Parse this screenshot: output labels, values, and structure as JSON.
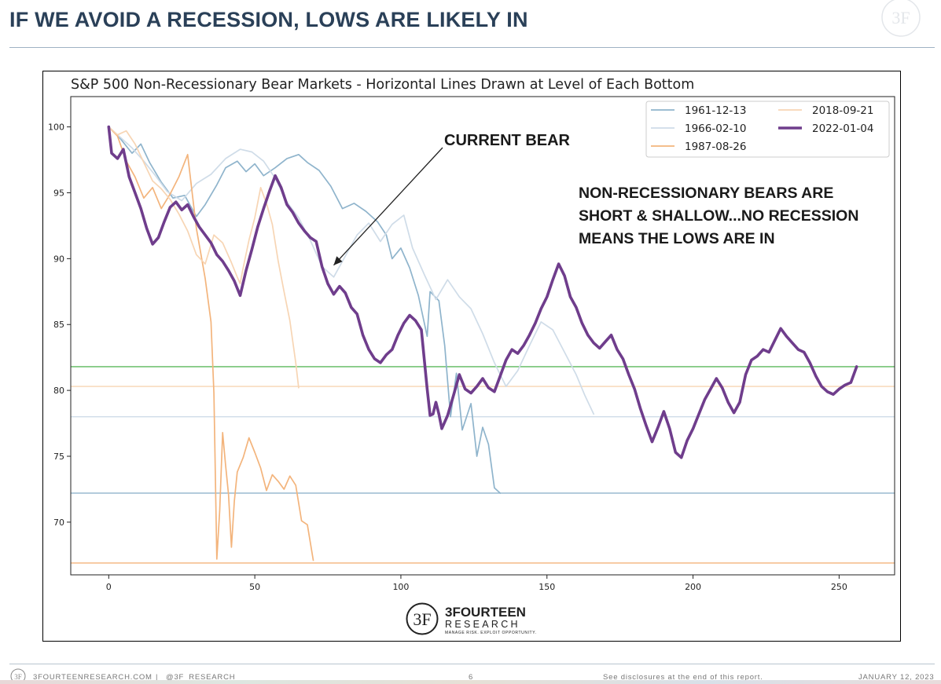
{
  "slide": {
    "title": "IF WE AVOID A RECESSION, LOWS ARE LIKELY IN",
    "brand_name": "3FOURTEEN",
    "brand_sub": "RESEARCH",
    "brand_tagline": "MANAGE RISK. EXPLOIT OPPORTUNITY.",
    "logo_mark": "3F"
  },
  "footer": {
    "site": "3FOURTEENRESEARCH.COM",
    "separator": "|",
    "handle": "@3F_RESEARCH",
    "page_number": "6",
    "disclosure": "See disclosures at the end of this report.",
    "date": "JANUARY 12, 2023"
  },
  "colors": {
    "title": "#2a4058",
    "s1961": "#8fb4cc",
    "s1966": "#cfdce8",
    "s1987": "#f3b47c",
    "s2018": "#f7d5b4",
    "s2022": "#6f3d8c",
    "green_line": "#5cb85c"
  },
  "chart_data": {
    "type": "line",
    "title": "S&P 500 Non-Recessionary Bear Markets - Horizontal Lines Drawn at Level of Each Bottom",
    "xlabel": "",
    "ylabel": "",
    "xlim": [
      -13,
      269
    ],
    "ylim": [
      66,
      102.3
    ],
    "xticks": [
      0,
      50,
      100,
      150,
      200,
      250
    ],
    "yticks": [
      70,
      75,
      80,
      85,
      90,
      95,
      100
    ],
    "grid": false,
    "legend_position": "top-right",
    "legend_columns": 2,
    "series": [
      {
        "name": "1961-12-13",
        "color": "#8fb4cc",
        "x": [
          0,
          4,
          8,
          11,
          14,
          18,
          22,
          26,
          30,
          33,
          37,
          40,
          44,
          47,
          50,
          53,
          57,
          61,
          65,
          68,
          72,
          76,
          80,
          84,
          88,
          92,
          95,
          97,
          100,
          103,
          106,
          109,
          110,
          113,
          115,
          117,
          119,
          121,
          124,
          126,
          128,
          130,
          132,
          134
        ],
        "y": [
          100,
          99.1,
          98,
          98.7,
          97.3,
          95.8,
          94.6,
          94.8,
          93.2,
          94.1,
          95.6,
          96.9,
          97.4,
          96.6,
          97.2,
          96.3,
          96.9,
          97.6,
          97.9,
          97.3,
          96.7,
          95.5,
          93.8,
          94.2,
          93.6,
          92.8,
          91.8,
          90,
          90.8,
          89.3,
          87.2,
          84.1,
          87.5,
          86.8,
          83.4,
          78,
          81.3,
          77,
          79,
          75,
          77.2,
          75.9,
          72.6,
          72.2
        ]
      },
      {
        "name": "1966-02-10",
        "color": "#cfdce8",
        "x": [
          0,
          4,
          8,
          12,
          16,
          20,
          25,
          30,
          35,
          40,
          45,
          49,
          53,
          57,
          61,
          65,
          69,
          73,
          77,
          81,
          85,
          89,
          93,
          97,
          101,
          104,
          108,
          112,
          116,
          120,
          124,
          128,
          132,
          136,
          140,
          144,
          148,
          152,
          156,
          160,
          163,
          166
        ],
        "y": [
          100,
          99.2,
          98.4,
          97.4,
          96.3,
          95.1,
          94.4,
          95.7,
          96.4,
          97.6,
          98.3,
          98.1,
          97.4,
          96.1,
          94.3,
          93.1,
          91.4,
          89.4,
          88.6,
          90.2,
          91.8,
          92.7,
          91.3,
          92.6,
          93.3,
          90.8,
          88.8,
          86.9,
          88.4,
          87.1,
          86.2,
          84.3,
          82.1,
          80.3,
          81.5,
          83.4,
          85.2,
          84.6,
          82.9,
          81.2,
          79.6,
          78.2
        ]
      },
      {
        "name": "1987-08-26",
        "color": "#f3b47c",
        "x": [
          0,
          3,
          6,
          9,
          12,
          15,
          18,
          21,
          24,
          27,
          30,
          33,
          35,
          36,
          37,
          38,
          39,
          40,
          41,
          42,
          43,
          44,
          46,
          48,
          50,
          52,
          54,
          56,
          58,
          60,
          62,
          64,
          66,
          68,
          70
        ],
        "y": [
          100,
          99.3,
          97.4,
          96.2,
          94.6,
          95.4,
          93.8,
          94.9,
          96.2,
          97.9,
          92.3,
          88.5,
          85.2,
          79.8,
          67.2,
          70.9,
          76.8,
          74.3,
          72.1,
          68.1,
          71.6,
          73.8,
          74.9,
          76.4,
          75.3,
          74.1,
          72.4,
          73.6,
          73.1,
          72.5,
          73.5,
          72.8,
          70.1,
          69.8,
          67.1
        ]
      },
      {
        "name": "2018-09-21",
        "color": "#f7d5b4",
        "x": [
          0,
          3,
          6,
          9,
          12,
          15,
          18,
          21,
          24,
          27,
          30,
          33,
          36,
          39,
          42,
          44,
          45,
          46,
          48,
          50,
          52,
          54,
          56,
          58,
          60,
          62,
          64,
          65
        ],
        "y": [
          100,
          99.4,
          99.7,
          98.7,
          97.3,
          95.9,
          95.3,
          94.5,
          93.4,
          92.1,
          90.3,
          89.6,
          91.8,
          91.2,
          89.7,
          88.6,
          88.1,
          89.3,
          91.4,
          93.1,
          95.4,
          94.2,
          92.6,
          89.8,
          87.5,
          85.3,
          82.1,
          80.2
        ]
      },
      {
        "name": "2022-01-04",
        "color": "#6f3d8c",
        "x": [
          0,
          1,
          3,
          5,
          7,
          9,
          11,
          13,
          15,
          17,
          19,
          21,
          23,
          25,
          27,
          29,
          31,
          33,
          35,
          37,
          39,
          41,
          43,
          45,
          47,
          49,
          51,
          53,
          55,
          57,
          59,
          61,
          63,
          65,
          67,
          69,
          71,
          73,
          75,
          77,
          79,
          81,
          83,
          85,
          87,
          89,
          91,
          93,
          95,
          97,
          99,
          101,
          103,
          105,
          107,
          109,
          110,
          111,
          112,
          113,
          114,
          116,
          118,
          120,
          122,
          124,
          126,
          128,
          130,
          132,
          134,
          136,
          138,
          140,
          142,
          144,
          146,
          148,
          150,
          152,
          154,
          156,
          158,
          160,
          162,
          164,
          166,
          168,
          170,
          172,
          174,
          176,
          178,
          180,
          182,
          184,
          186,
          188,
          190,
          192,
          194,
          196,
          198,
          200,
          202,
          204,
          206,
          208,
          210,
          212,
          214,
          216,
          218,
          220,
          222,
          224,
          226,
          228,
          230,
          232,
          234,
          236,
          238,
          240,
          242,
          244,
          246,
          248,
          250,
          252,
          254,
          256
        ],
        "y": [
          100,
          98,
          97.6,
          98.3,
          96.2,
          95,
          93.8,
          92.3,
          91.1,
          91.6,
          92.8,
          93.9,
          94.3,
          93.7,
          94.1,
          93.2,
          92.4,
          91.8,
          91.2,
          90.3,
          89.8,
          89.1,
          88.3,
          87.2,
          89.1,
          90.7,
          92.4,
          93.8,
          95.1,
          96.3,
          95.4,
          94.1,
          93.5,
          92.7,
          92.1,
          91.6,
          91.3,
          89.4,
          88.1,
          87.3,
          87.9,
          87.4,
          86.3,
          85.8,
          84.2,
          83.1,
          82.4,
          82.1,
          82.7,
          83.1,
          84.2,
          85.1,
          85.7,
          85.3,
          84.6,
          80.1,
          78.1,
          78.2,
          79.1,
          78.2,
          77.1,
          78.1,
          79.6,
          81.2,
          80.1,
          79.8,
          80.3,
          80.9,
          80.2,
          79.9,
          81.1,
          82.3,
          83.1,
          82.8,
          83.4,
          84.2,
          85.1,
          86.2,
          87.1,
          88.4,
          89.6,
          88.7,
          87.1,
          86.3,
          85.1,
          84.2,
          83.6,
          83.2,
          83.7,
          84.2,
          83.1,
          82.4,
          81.2,
          80.1,
          78.6,
          77.3,
          76.1,
          77.2,
          78.4,
          77.1,
          75.3,
          74.9,
          76.2,
          77.1,
          78.2,
          79.3,
          80.1,
          80.9,
          80.2,
          79.1,
          78.3,
          79.1,
          81.2,
          82.3,
          82.6,
          83.1,
          82.9,
          83.8,
          84.7,
          84.1,
          83.6,
          83.1,
          82.9,
          82.1,
          81.1,
          80.3,
          79.9,
          79.7,
          80.1,
          80.4,
          80.6,
          81.8
        ]
      }
    ],
    "reference_lines": [
      {
        "y": 81.8,
        "color": "#5cb85c"
      },
      {
        "y": 80.3,
        "color": "#f7d5b4"
      },
      {
        "y": 78.0,
        "color": "#cfdce8"
      },
      {
        "y": 72.2,
        "color": "#8fb4cc"
      },
      {
        "y": 66.9,
        "color": "#f3b47c"
      }
    ],
    "annotations": {
      "current_bear": {
        "text": "CURRENT BEAR",
        "arrow_to": [
          77,
          89.5
        ]
      },
      "note_line1": "NON-RECESSIONARY BEARS ARE",
      "note_line2": "SHORT & SHALLOW...NO RECESSION",
      "note_line3": "MEANS THE LOWS ARE IN"
    }
  }
}
